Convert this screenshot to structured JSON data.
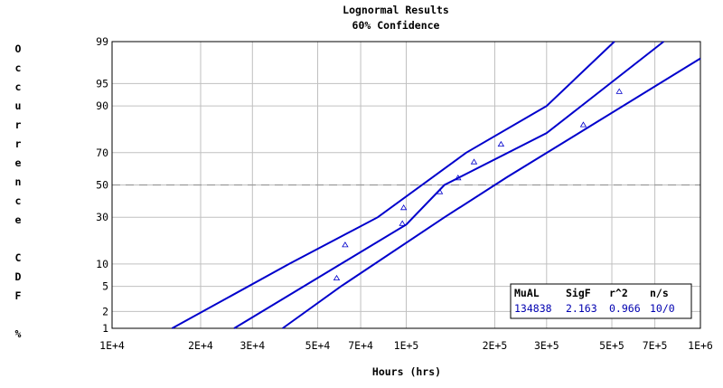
{
  "chart_data": {
    "type": "line",
    "title": "Lognormal Results",
    "subtitle": "60% Confidence",
    "xlabel": "Hours (hrs)",
    "ylabel": "Occurrence CDF %",
    "x_scale": "log",
    "y_scale": "lognormal-probability",
    "xlim": [
      10000,
      1000000
    ],
    "ylim": [
      1,
      99
    ],
    "x_ticks": [
      {
        "value": 10000,
        "label": "1E+4"
      },
      {
        "value": 20000,
        "label": "2E+4"
      },
      {
        "value": 30000,
        "label": "3E+4"
      },
      {
        "value": 50000,
        "label": "5E+4"
      },
      {
        "value": 70000,
        "label": "7E+4"
      },
      {
        "value": 100000,
        "label": "1E+5"
      },
      {
        "value": 200000,
        "label": "2E+5"
      },
      {
        "value": 300000,
        "label": "3E+5"
      },
      {
        "value": 500000,
        "label": "5E+5"
      },
      {
        "value": 700000,
        "label": "7E+5"
      },
      {
        "value": 1000000,
        "label": "1E+6"
      }
    ],
    "y_ticks": [
      1,
      2,
      5,
      10,
      30,
      50,
      70,
      90,
      95,
      99
    ],
    "reference_line": {
      "y": 50,
      "style": "dashed"
    },
    "grid": true,
    "series": [
      {
        "role": "fit",
        "x": [
          26000,
          100000,
          134838,
          300000,
          750000
        ],
        "y": [
          1,
          26,
          50,
          80,
          99
        ]
      },
      {
        "role": "upper-bound",
        "x": [
          16000,
          40000,
          80000,
          160000,
          300000,
          510000
        ],
        "y": [
          1,
          10,
          30,
          70,
          90,
          99
        ]
      },
      {
        "role": "lower-bound",
        "x": [
          38000,
          60000,
          135000,
          220000,
          450000,
          1000000
        ],
        "y": [
          1,
          5,
          30,
          55,
          85,
          98
        ]
      }
    ],
    "points": [
      {
        "x": 58000,
        "y": 6.5
      },
      {
        "x": 62000,
        "y": 16.5
      },
      {
        "x": 97000,
        "y": 26.5
      },
      {
        "x": 98000,
        "y": 35.5
      },
      {
        "x": 130000,
        "y": 45.5
      },
      {
        "x": 150000,
        "y": 54.5
      },
      {
        "x": 170000,
        "y": 64.5
      },
      {
        "x": 210000,
        "y": 74.5
      },
      {
        "x": 400000,
        "y": 83.5
      },
      {
        "x": 530000,
        "y": 93.5
      }
    ],
    "stats": {
      "headers": [
        "MuAL",
        "SigF",
        "r^2",
        "n/s"
      ],
      "values": [
        "134838",
        "2.163",
        "0.966",
        "10/0"
      ]
    },
    "colors": {
      "line": "#0000cc",
      "marker": "#0000cc",
      "grid": "#c0c0c0",
      "reference": "#999999",
      "stats_value": "#0000b0"
    }
  }
}
